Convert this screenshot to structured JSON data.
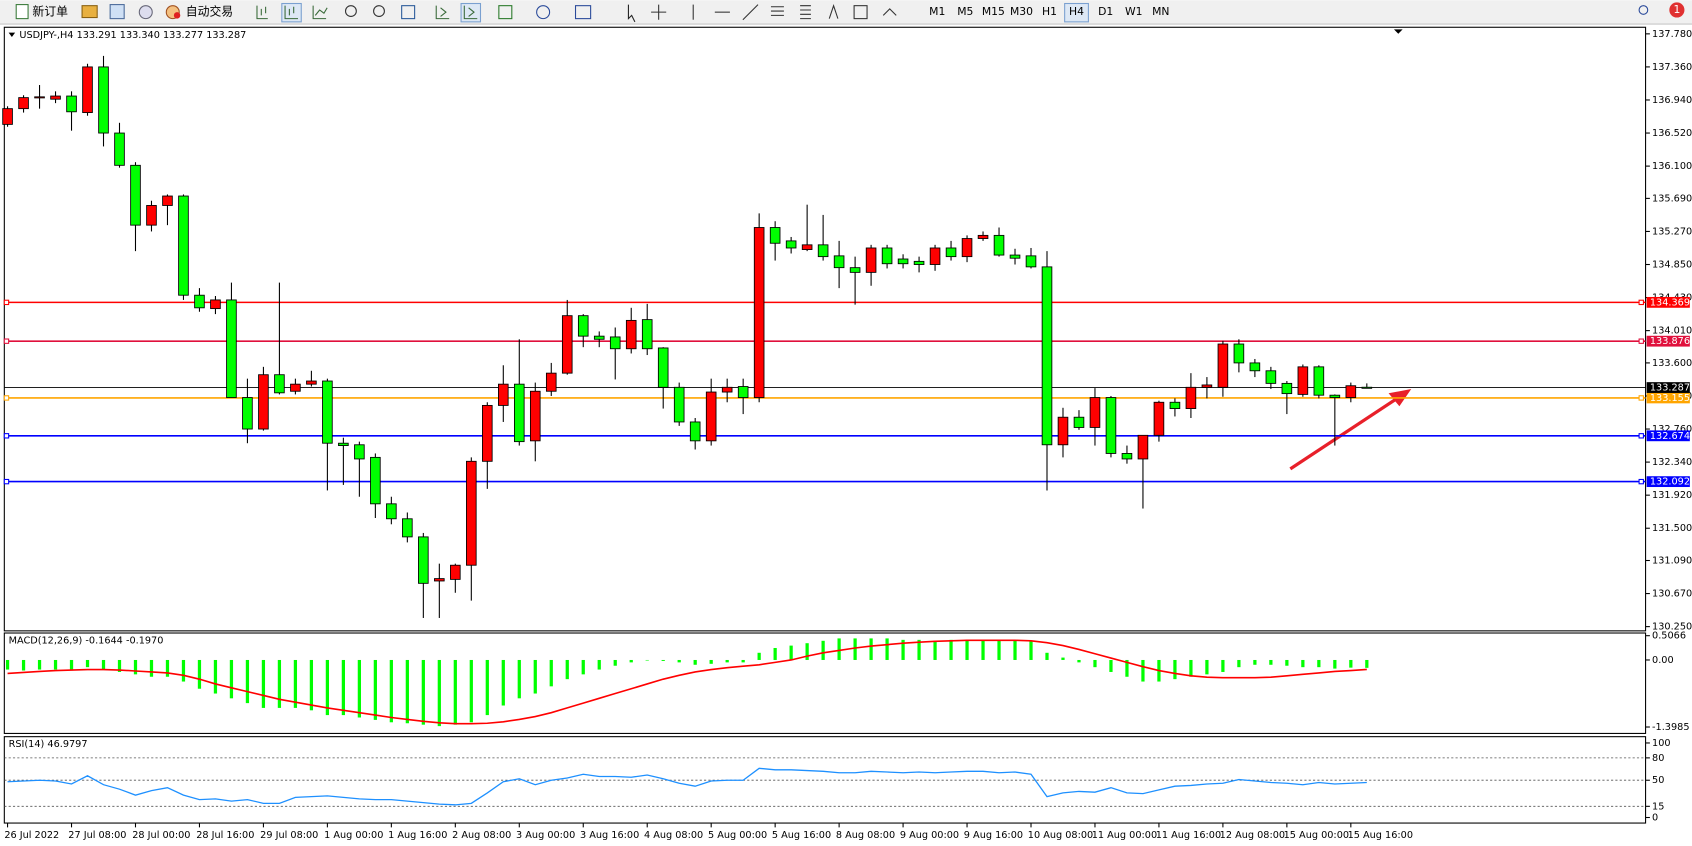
{
  "toolbar": {
    "new_order": "新订单",
    "auto_trading": "自动交易",
    "timeframes": [
      "M1",
      "M5",
      "M15",
      "M30",
      "H1",
      "H4",
      "D1",
      "W1",
      "MN"
    ],
    "active_timeframe": "H4",
    "notifications": 1
  },
  "chart_data": [
    {
      "type": "candlestick",
      "title": "USDJPY-,H4  133.291 133.340 133.277 133.287",
      "categories": [
        "26 Jul 2022",
        null,
        null,
        null,
        "27 Jul 08:00",
        null,
        null,
        null,
        "28 Jul 00:00",
        null,
        null,
        null,
        "28 Jul 16:00",
        null,
        null,
        null,
        "29 Jul 08:00",
        null,
        null,
        null,
        "1 Aug 00:00",
        null,
        null,
        null,
        "1 Aug 16:00",
        null,
        null,
        null,
        "2 Aug 08:00",
        null,
        null,
        null,
        "3 Aug 00:00",
        null,
        null,
        null,
        "3 Aug 16:00",
        null,
        null,
        null,
        "4 Aug 08:00",
        null,
        null,
        null,
        "5 Aug 00:00",
        null,
        null,
        null,
        "5 Aug 16:00",
        null,
        null,
        null,
        "8 Aug 08:00",
        null,
        null,
        null,
        "9 Aug 00:00",
        null,
        null,
        null,
        "9 Aug 16:00",
        null,
        null,
        null,
        "10 Aug 08:00",
        null,
        null,
        null,
        "11 Aug 00:00",
        null,
        null,
        null,
        "11 Aug 16:00",
        null,
        null,
        null,
        "12 Aug 08:00",
        null,
        null,
        null,
        "15 Aug 00:00",
        null,
        null,
        null,
        "15 Aug 16:00",
        null
      ],
      "open": [
        136.63,
        136.83,
        136.97,
        136.95,
        136.99,
        136.78,
        137.36,
        136.52,
        136.11,
        135.35,
        135.6,
        135.72,
        134.46,
        134.29,
        134.4,
        133.16,
        132.76,
        133.45,
        133.24,
        133.33,
        133.37,
        132.58,
        132.56,
        132.4,
        131.81,
        131.62,
        131.39,
        130.83,
        130.85,
        131.03,
        132.35,
        133.06,
        133.33,
        132.61,
        133.24,
        133.47,
        134.2,
        133.94,
        133.93,
        133.78,
        134.15,
        133.79,
        133.29,
        132.85,
        132.61,
        133.23,
        133.3,
        133.16,
        135.32,
        135.15,
        135.04,
        135.1,
        134.96,
        134.81,
        134.75,
        135.06,
        134.92,
        134.89,
        134.85,
        135.06,
        134.95,
        135.18,
        135.22,
        134.97,
        134.96,
        134.82,
        132.56,
        132.91,
        132.78,
        133.16,
        132.45,
        132.38,
        132.68,
        133.1,
        133.02,
        133.29,
        133.29,
        133.84,
        133.6,
        133.5,
        133.34,
        133.2,
        133.55,
        133.19,
        133.16,
        133.291
      ],
      "high": [
        136.86,
        137.0,
        137.13,
        137.05,
        137.05,
        137.4,
        137.5,
        136.65,
        136.15,
        135.66,
        135.74,
        135.74,
        134.55,
        134.45,
        134.62,
        133.4,
        133.55,
        134.62,
        133.4,
        133.5,
        133.4,
        132.65,
        132.6,
        132.45,
        131.9,
        131.7,
        131.44,
        131.05,
        131.05,
        132.4,
        133.1,
        133.57,
        133.9,
        133.35,
        133.6,
        134.4,
        134.22,
        134.0,
        134.05,
        134.3,
        134.35,
        133.8,
        133.35,
        132.9,
        133.4,
        133.4,
        133.4,
        135.5,
        135.4,
        135.2,
        135.61,
        135.48,
        135.15,
        134.95,
        135.1,
        135.1,
        134.98,
        134.95,
        135.1,
        135.15,
        135.22,
        135.27,
        135.32,
        135.05,
        135.06,
        135.02,
        133.03,
        133.0,
        133.28,
        133.18,
        132.55,
        132.68,
        133.12,
        133.15,
        133.47,
        133.42,
        133.88,
        133.9,
        133.65,
        133.55,
        133.37,
        133.58,
        133.57,
        133.2,
        133.35,
        133.34
      ],
      "low": [
        136.6,
        136.78,
        136.83,
        136.9,
        136.55,
        136.74,
        136.35,
        136.08,
        135.02,
        135.27,
        135.35,
        134.4,
        134.25,
        134.22,
        133.16,
        132.58,
        132.74,
        133.2,
        133.2,
        133.3,
        131.98,
        132.05,
        131.9,
        131.63,
        131.55,
        131.32,
        130.36,
        130.36,
        130.68,
        130.58,
        132.0,
        132.85,
        132.55,
        132.35,
        133.18,
        133.45,
        133.8,
        133.8,
        133.39,
        133.72,
        133.7,
        133.02,
        132.8,
        132.5,
        132.55,
        133.1,
        132.95,
        133.1,
        134.9,
        134.99,
        135.02,
        134.9,
        134.55,
        134.34,
        134.58,
        134.8,
        134.8,
        134.75,
        134.77,
        134.9,
        134.88,
        135.15,
        134.95,
        134.85,
        134.8,
        131.98,
        132.4,
        132.75,
        132.55,
        132.4,
        132.32,
        131.75,
        132.6,
        132.92,
        132.9,
        133.15,
        133.17,
        133.48,
        133.42,
        133.27,
        132.95,
        133.17,
        133.15,
        132.55,
        133.1,
        133.277
      ],
      "close": [
        136.83,
        136.97,
        136.98,
        136.99,
        136.79,
        137.36,
        136.52,
        136.11,
        135.35,
        135.6,
        135.72,
        134.46,
        134.3,
        134.4,
        133.16,
        132.76,
        133.45,
        133.22,
        133.33,
        133.37,
        132.58,
        132.55,
        132.38,
        131.81,
        131.62,
        131.39,
        130.8,
        130.86,
        131.03,
        132.35,
        133.06,
        133.33,
        132.6,
        133.24,
        133.47,
        134.2,
        133.94,
        133.9,
        133.78,
        134.14,
        133.78,
        133.29,
        132.85,
        132.61,
        133.23,
        133.29,
        133.16,
        135.32,
        135.12,
        135.06,
        135.1,
        134.95,
        134.81,
        134.75,
        135.06,
        134.86,
        134.86,
        134.85,
        135.06,
        134.95,
        135.18,
        135.22,
        134.97,
        134.93,
        134.82,
        132.56,
        132.91,
        132.78,
        133.16,
        132.45,
        132.38,
        132.68,
        133.1,
        133.02,
        133.29,
        133.32,
        133.84,
        133.6,
        133.5,
        133.34,
        133.21,
        133.55,
        133.19,
        133.16,
        133.31,
        133.287
      ],
      "up_color": "#ff0000",
      "down_color": "#00ff00",
      "ylim": [
        130.21,
        137.85
      ],
      "yticks": [
        {
          "value": 137.78,
          "label": "137.780"
        },
        {
          "value": 137.36,
          "label": "137.360"
        },
        {
          "value": 136.94,
          "label": "136.940"
        },
        {
          "value": 136.52,
          "label": "136.520"
        },
        {
          "value": 136.1,
          "label": "136.100"
        },
        {
          "value": 135.69,
          "label": "135.690"
        },
        {
          "value": 135.27,
          "label": "135.270"
        },
        {
          "value": 134.85,
          "label": "134.850"
        },
        {
          "value": 134.43,
          "label": "134.430"
        },
        {
          "value": 134.01,
          "label": "134.010"
        },
        {
          "value": 133.6,
          "label": "133.600"
        },
        {
          "value": 133.18,
          "label": "133.180"
        },
        {
          "value": 132.76,
          "label": "132.760"
        },
        {
          "value": 132.34,
          "label": "132.340"
        },
        {
          "value": 131.92,
          "label": "131.920"
        },
        {
          "value": 131.5,
          "label": "131.500"
        },
        {
          "value": 131.09,
          "label": "131.090"
        },
        {
          "value": 130.67,
          "label": "130.670"
        },
        {
          "value": 130.25,
          "label": "130.250"
        }
      ],
      "levels": [
        {
          "value": 134.369,
          "color": "#ff0000"
        },
        {
          "value": 133.876,
          "color": "#e0103c"
        },
        {
          "value": 133.155,
          "color": "#ffa500"
        },
        {
          "value": 132.674,
          "color": "#0000ff"
        },
        {
          "value": 132.092,
          "color": "#0000ff"
        }
      ],
      "bid": 133.287
    },
    {
      "type": "macd",
      "title": "MACD(12,26,9) -0.1644 -0.1970",
      "series": [
        {
          "color": "#00ff00",
          "values": [
            -0.2,
            -0.22,
            -0.2,
            -0.2,
            -0.22,
            -0.15,
            -0.2,
            -0.25,
            -0.3,
            -0.35,
            -0.35,
            -0.45,
            -0.6,
            -0.7,
            -0.8,
            -0.9,
            -1.0,
            -1.0,
            -1.0,
            -1.05,
            -1.15,
            -1.15,
            -1.2,
            -1.25,
            -1.3,
            -1.32,
            -1.35,
            -1.38,
            -1.35,
            -1.3,
            -1.15,
            -0.95,
            -0.8,
            -0.7,
            -0.55,
            -0.4,
            -0.3,
            -0.2,
            -0.12,
            -0.05,
            0.0,
            -0.02,
            -0.05,
            -0.1,
            -0.08,
            -0.05,
            -0.05,
            0.15,
            0.25,
            0.3,
            0.35,
            0.4,
            0.45,
            0.45,
            0.45,
            0.45,
            0.42,
            0.42,
            0.4,
            0.42,
            0.42,
            0.42,
            0.42,
            0.42,
            0.4,
            0.15,
            0.05,
            -0.05,
            -0.15,
            -0.25,
            -0.35,
            -0.45,
            -0.45,
            -0.4,
            -0.35,
            -0.3,
            -0.25,
            -0.15,
            -0.1,
            -0.1,
            -0.12,
            -0.15,
            -0.15,
            -0.18,
            -0.16,
            -0.1644
          ]
        },
        {
          "color": "#ff0000",
          "values": [
            -0.28,
            -0.26,
            -0.24,
            -0.22,
            -0.21,
            -0.2,
            -0.2,
            -0.21,
            -0.23,
            -0.25,
            -0.27,
            -0.32,
            -0.4,
            -0.5,
            -0.58,
            -0.66,
            -0.74,
            -0.82,
            -0.88,
            -0.94,
            -1.0,
            -1.05,
            -1.1,
            -1.15,
            -1.2,
            -1.24,
            -1.28,
            -1.31,
            -1.33,
            -1.33,
            -1.32,
            -1.29,
            -1.24,
            -1.18,
            -1.1,
            -1.0,
            -0.9,
            -0.8,
            -0.7,
            -0.6,
            -0.5,
            -0.4,
            -0.32,
            -0.25,
            -0.2,
            -0.16,
            -0.13,
            -0.1,
            -0.05,
            0.0,
            0.08,
            0.15,
            0.2,
            0.25,
            0.29,
            0.32,
            0.35,
            0.37,
            0.39,
            0.4,
            0.41,
            0.41,
            0.41,
            0.41,
            0.4,
            0.36,
            0.3,
            0.22,
            0.13,
            0.04,
            -0.05,
            -0.14,
            -0.22,
            -0.28,
            -0.33,
            -0.36,
            -0.37,
            -0.37,
            -0.37,
            -0.36,
            -0.33,
            -0.3,
            -0.27,
            -0.24,
            -0.22,
            -0.197
          ]
        }
      ],
      "ylim": [
        -1.51,
        0.54
      ],
      "yticks": [
        0.5066,
        {
          "value": 0,
          "label": "0.00"
        },
        -1.3985
      ]
    },
    {
      "type": "rsi",
      "title": "RSI(14) 46.9797",
      "color": "#1e90ff",
      "values": [
        48,
        49,
        50,
        49,
        45,
        56,
        44,
        38,
        30,
        36,
        40,
        30,
        24,
        25,
        22,
        24,
        19,
        19,
        27,
        28,
        29,
        27,
        25,
        24,
        24,
        22,
        20,
        18,
        17,
        19,
        33,
        48,
        52,
        44,
        50,
        53,
        58,
        55,
        55,
        54,
        57,
        52,
        46,
        42,
        49,
        50,
        50,
        66,
        64,
        64,
        63,
        62,
        60,
        60,
        62,
        61,
        60,
        61,
        60,
        61,
        62,
        62,
        60,
        61,
        58,
        28,
        33,
        35,
        34,
        40,
        33,
        32,
        37,
        42,
        43,
        45,
        46,
        51,
        49,
        47,
        46,
        44,
        47,
        45,
        46,
        46.9797
      ],
      "ylim": [
        -6,
        107
      ],
      "yticks": [
        100,
        80,
        50,
        15,
        0
      ],
      "levels": [
        80,
        50,
        15
      ]
    }
  ]
}
